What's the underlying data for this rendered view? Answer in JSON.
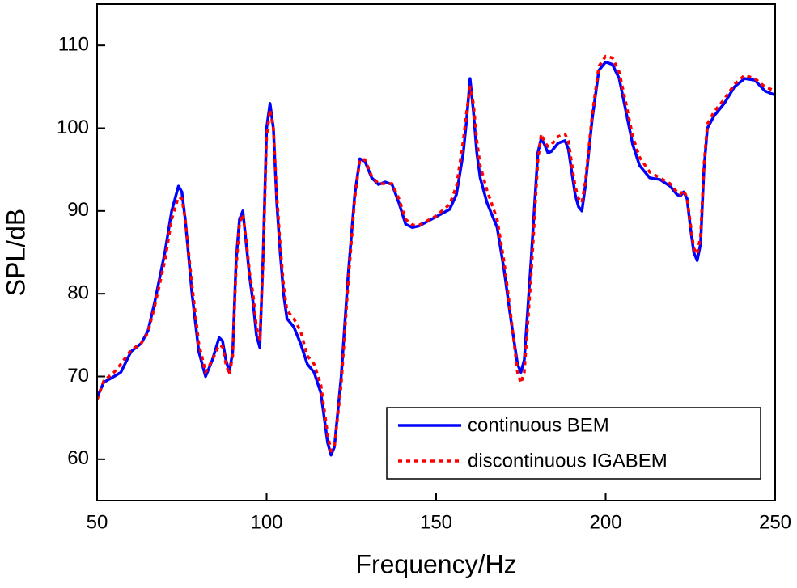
{
  "chart_data": {
    "type": "line",
    "x_label": "Frequency/Hz",
    "y_label": "SPL/dB",
    "x": [
      50,
      52,
      55,
      57,
      60,
      63,
      65,
      67,
      70,
      72,
      74,
      75,
      76,
      78,
      80,
      82,
      84,
      86,
      87,
      88,
      89,
      90,
      91,
      92,
      93,
      94,
      95,
      96,
      97,
      98,
      99,
      100,
      101,
      102,
      103,
      104,
      105,
      106,
      108,
      110,
      112,
      114,
      116,
      118,
      119,
      120,
      122,
      124,
      126,
      127.5,
      129,
      131,
      133,
      135,
      137,
      139,
      141,
      143,
      145,
      150,
      154,
      156,
      158,
      159,
      160,
      161,
      162,
      163,
      165,
      168,
      170,
      172,
      174,
      175,
      176,
      178,
      180,
      181,
      182,
      183,
      184,
      186,
      188,
      189,
      191,
      192,
      193,
      194,
      196,
      198,
      200,
      202,
      204,
      206,
      208,
      210,
      213,
      216,
      219,
      221,
      222,
      223,
      224,
      225,
      226,
      227,
      228,
      229,
      230,
      232,
      235,
      238,
      241,
      244,
      247,
      250
    ],
    "series": [
      {
        "name": "continuous BEM",
        "color": "#0000ff",
        "style": "solid",
        "values": [
          67.5,
          69.3,
          70,
          70.5,
          73,
          74,
          75.5,
          79,
          85,
          90,
          93,
          92.3,
          89,
          80,
          73,
          70,
          72,
          74.7,
          74.3,
          72,
          70.5,
          73,
          84,
          89,
          90,
          86,
          82,
          79,
          75,
          73.5,
          85,
          100,
          103,
          100,
          91,
          85,
          80,
          77,
          76,
          74,
          71.5,
          70.5,
          68,
          62,
          60.5,
          61.5,
          70,
          82,
          92,
          96.3,
          96,
          94,
          93.2,
          93.5,
          93.2,
          91,
          88.4,
          88,
          88.2,
          89.3,
          90.2,
          92,
          97,
          101,
          106,
          102,
          97,
          94,
          91,
          88,
          83,
          77,
          71.5,
          70.5,
          72,
          84,
          97,
          98.8,
          98,
          97,
          97.2,
          98.2,
          98.5,
          97.5,
          92,
          90.5,
          90,
          93,
          101,
          107,
          108,
          107.7,
          106,
          102,
          98,
          95.5,
          94,
          93.8,
          93,
          92,
          91.8,
          92.3,
          91.5,
          88,
          85,
          84,
          86,
          95,
          100,
          101.5,
          103,
          105,
          106,
          105.8,
          104.5,
          104
        ]
      },
      {
        "name": "discontinuous IGABEM",
        "color": "#ff0000",
        "style": "dotted",
        "values": [
          67.2,
          69.5,
          70.5,
          71.5,
          73.2,
          74,
          75.3,
          78.5,
          84,
          89,
          91.7,
          91.5,
          89,
          81,
          74,
          70.5,
          72,
          73.8,
          73.6,
          71.5,
          70.2,
          72.5,
          83,
          88.5,
          89.6,
          86.5,
          82.5,
          80,
          76,
          74.5,
          84,
          99,
          102.2,
          100,
          92,
          86,
          81,
          78,
          77,
          75.5,
          72.5,
          71.5,
          69,
          63,
          61,
          61.5,
          69,
          81,
          91.5,
          96.2,
          96.2,
          94.2,
          93.3,
          93.3,
          93.3,
          91.5,
          89,
          88.3,
          88.3,
          89.4,
          90.8,
          93,
          98.5,
          102,
          105,
          103,
          98.5,
          95.5,
          92.5,
          89,
          84,
          77.5,
          70.5,
          69.2,
          70.5,
          82,
          96,
          99.3,
          98.3,
          97.8,
          98,
          99,
          99.3,
          98.5,
          93,
          91.5,
          91,
          93.5,
          101.5,
          107.5,
          108.7,
          108.5,
          106.8,
          103,
          99,
          96.5,
          94.7,
          94,
          93.3,
          92.3,
          92,
          92.5,
          91.6,
          88.5,
          85.5,
          84.8,
          87,
          95.5,
          100.5,
          102,
          103.5,
          105.3,
          106.4,
          106,
          105,
          104.5
        ]
      }
    ],
    "xlim": [
      50,
      250
    ],
    "xticks": [
      50,
      100,
      150,
      200,
      250
    ],
    "ylim": [
      55,
      115
    ],
    "yticks": [
      60,
      70,
      80,
      90,
      100,
      110
    ],
    "legend": "lower right",
    "grid": false
  }
}
